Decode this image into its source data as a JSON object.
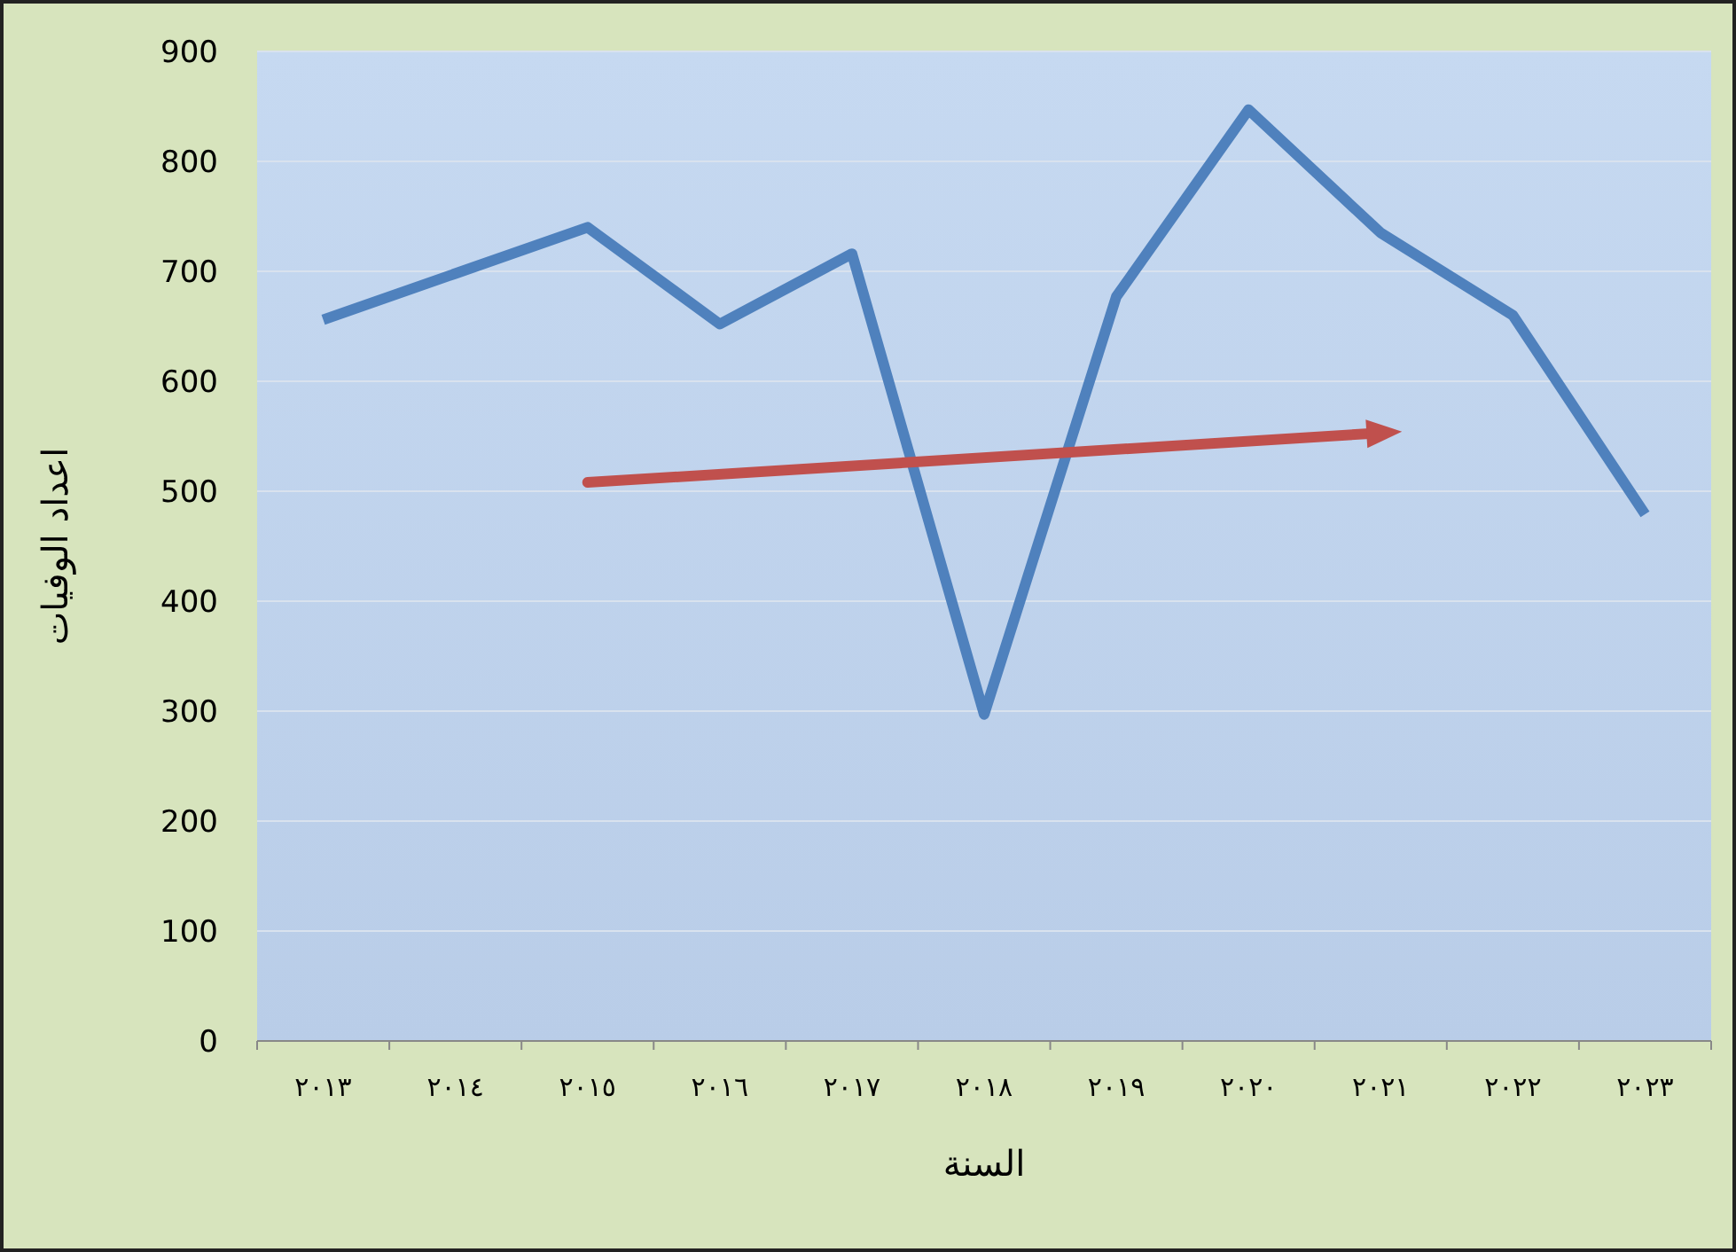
{
  "chart_data": {
    "type": "line",
    "xlabel": "السنة",
    "ylabel": "اعداد الوفيات",
    "categories": [
      "٢٠١٣",
      "٢٠١٤",
      "٢٠١٥",
      "٢٠١٦",
      "٢٠١٧",
      "٢٠١٨",
      "٢٠١٩",
      "٢٠٢٠",
      "٢٠٢١",
      "٢٠٢٢",
      "٢٠٢٣"
    ],
    "series": [
      {
        "color": "#4f81bd",
        "values": [
          656,
          698,
          740,
          652,
          716,
          297,
          677,
          847,
          735,
          660,
          479
        ]
      },
      {
        "type": "line",
        "color": "#c0504d",
        "values": [
          null,
          null,
          508,
          null,
          null,
          null,
          null,
          null,
          553,
          null,
          null
        ],
        "marker": "triangle"
      }
    ],
    "ylim": [
      0,
      900
    ],
    "yticks": [
      0,
      100,
      200,
      300,
      400,
      500,
      600,
      700,
      800,
      900
    ],
    "grid": "y"
  }
}
